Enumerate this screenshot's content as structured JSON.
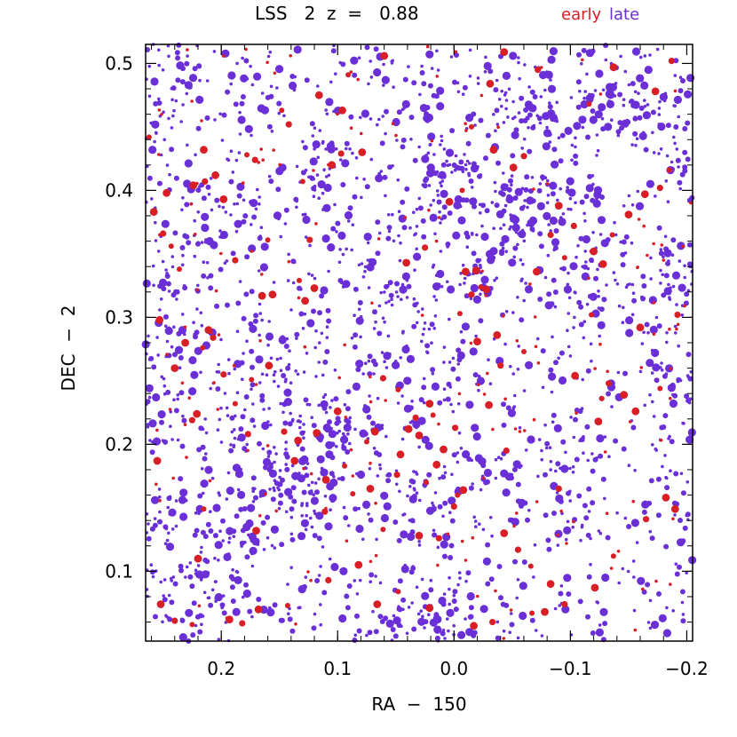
{
  "chart_data": {
    "type": "scatter",
    "title": "LSS   2  z  =   0.88",
    "xlabel": "RA  −  150",
    "ylabel": "DEC  −  2",
    "xlim": [
      0.265,
      -0.205
    ],
    "ylim": [
      0.045,
      0.515
    ],
    "x_ticks": [
      {
        "value": 0.2,
        "label": "0.2"
      },
      {
        "value": 0.1,
        "label": "0.1"
      },
      {
        "value": 0.0,
        "label": "0.0"
      },
      {
        "value": -0.1,
        "label": "−0.1"
      },
      {
        "value": -0.2,
        "label": "−0.2"
      }
    ],
    "y_ticks": [
      {
        "value": 0.1,
        "label": "0.1"
      },
      {
        "value": 0.2,
        "label": "0.2"
      },
      {
        "value": 0.3,
        "label": "0.3"
      },
      {
        "value": 0.4,
        "label": "0.4"
      },
      {
        "value": 0.5,
        "label": "0.5"
      }
    ],
    "x_minor_step": 0.02,
    "y_minor_step": 0.02,
    "legend_position": "top-right",
    "series": [
      {
        "name": "early",
        "color": "#d81f26",
        "points": [
          [
            0.262,
            0.442
          ],
          [
            0.258,
            0.383
          ],
          [
            0.247,
            0.398
          ],
          [
            0.25,
            0.366
          ],
          [
            0.236,
            0.338
          ],
          [
            0.224,
            0.404
          ],
          [
            0.214,
            0.407
          ],
          [
            0.205,
            0.412
          ],
          [
            0.178,
            0.428
          ],
          [
            0.171,
            0.424
          ],
          [
            0.165,
            0.317
          ],
          [
            0.156,
            0.318
          ],
          [
            0.133,
            0.329
          ],
          [
            0.128,
            0.313
          ],
          [
            0.12,
            0.323
          ],
          [
            0.124,
            0.361
          ],
          [
            0.13,
            0.407
          ],
          [
            0.105,
            0.42
          ],
          [
            0.097,
            0.429
          ],
          [
            0.079,
            0.43
          ],
          [
            0.148,
            0.463
          ],
          [
            0.142,
            0.452
          ],
          [
            0.116,
            0.475
          ],
          [
            0.096,
            0.463
          ],
          [
            0.091,
            0.491
          ],
          [
            0.06,
            0.506
          ],
          [
            0.211,
            0.29
          ],
          [
            0.207,
            0.284
          ],
          [
            0.216,
            0.276
          ],
          [
            0.221,
            0.224
          ],
          [
            0.225,
            0.219
          ],
          [
            0.24,
            0.26
          ],
          [
            0.174,
            0.251
          ],
          [
            0.177,
            0.208
          ],
          [
            0.134,
            0.203
          ],
          [
            0.118,
            0.209
          ],
          [
            0.075,
            0.202
          ],
          [
            0.068,
            0.21
          ],
          [
            0.039,
            0.212
          ],
          [
            0.033,
            0.221
          ],
          [
            0.018,
            0.223
          ],
          [
            0.021,
            0.232
          ],
          [
            -0.001,
            0.213
          ],
          [
            0.009,
            0.196
          ],
          [
            0.048,
            0.243
          ],
          [
            0.061,
            0.252
          ],
          [
            0.1,
            0.226
          ],
          [
            0.11,
            0.172
          ],
          [
            0.087,
            0.161
          ],
          [
            0.072,
            0.165
          ],
          [
            0.03,
            0.128
          ],
          [
            0.013,
            0.126
          ],
          [
            -0.003,
            0.16
          ],
          [
            -0.008,
            0.164
          ],
          [
            0.0,
            0.151
          ],
          [
            -0.019,
            0.337
          ],
          [
            -0.023,
            0.324
          ],
          [
            -0.015,
            0.318
          ],
          [
            -0.01,
            0.336
          ],
          [
            -0.028,
            0.322
          ],
          [
            -0.005,
            0.303
          ],
          [
            -0.02,
            0.281
          ],
          [
            -0.037,
            0.286
          ],
          [
            -0.04,
            0.262
          ],
          [
            -0.06,
            0.273
          ],
          [
            -0.071,
            0.336
          ],
          [
            -0.083,
            0.365
          ],
          [
            -0.09,
            0.388
          ],
          [
            -0.095,
            0.347
          ],
          [
            -0.103,
            0.372
          ],
          [
            -0.12,
            0.352
          ],
          [
            -0.128,
            0.342
          ],
          [
            -0.136,
            0.365
          ],
          [
            -0.15,
            0.381
          ],
          [
            -0.164,
            0.397
          ],
          [
            -0.177,
            0.402
          ],
          [
            -0.185,
            0.416
          ],
          [
            -0.173,
            0.478
          ],
          [
            -0.187,
            0.502
          ],
          [
            -0.137,
            0.497
          ],
          [
            -0.116,
            0.468
          ],
          [
            -0.072,
            0.495
          ],
          [
            -0.043,
            0.509
          ],
          [
            -0.031,
            0.484
          ],
          [
            -0.015,
            0.45
          ],
          [
            -0.034,
            0.432
          ],
          [
            -0.051,
            0.418
          ],
          [
            -0.06,
            0.427
          ],
          [
            -0.007,
            0.4
          ],
          [
            0.004,
            0.391
          ],
          [
            0.025,
            0.355
          ],
          [
            0.041,
            0.343
          ],
          [
            0.16,
            0.361
          ],
          [
            0.188,
            0.345
          ],
          [
            0.198,
            0.393
          ],
          [
            0.215,
            0.432
          ],
          [
            0.243,
            0.356
          ],
          [
            0.253,
            0.298
          ],
          [
            0.231,
            0.28
          ],
          [
            0.198,
            0.255
          ],
          [
            0.188,
            0.232
          ],
          [
            0.159,
            0.262
          ],
          [
            0.146,
            0.21
          ],
          [
            0.137,
            0.187
          ],
          [
            0.094,
            0.183
          ],
          [
            0.049,
            0.176
          ],
          [
            0.046,
            0.192
          ],
          [
            0.03,
            0.207
          ],
          [
            0.024,
            0.17
          ],
          [
            0.015,
            0.184
          ],
          [
            -0.043,
            0.13
          ],
          [
            -0.055,
            0.117
          ],
          [
            -0.066,
            0.104
          ],
          [
            -0.083,
            0.09
          ],
          [
            -0.09,
            0.165
          ],
          [
            -0.124,
            0.218
          ],
          [
            -0.127,
            0.236
          ],
          [
            -0.133,
            0.248
          ],
          [
            -0.146,
            0.239
          ],
          [
            -0.156,
            0.226
          ],
          [
            -0.177,
            0.244
          ],
          [
            -0.182,
            0.158
          ],
          [
            -0.19,
            0.149
          ],
          [
            -0.165,
            0.141
          ],
          [
            -0.137,
            0.112
          ],
          [
            -0.121,
            0.087
          ],
          [
            -0.095,
            0.074
          ],
          [
            -0.078,
            0.068
          ],
          [
            -0.067,
            0.067
          ],
          [
            -0.033,
            0.06
          ],
          [
            -0.017,
            0.057
          ],
          [
            0.021,
            0.071
          ],
          [
            0.048,
            0.084
          ],
          [
            0.066,
            0.074
          ],
          [
            0.082,
            0.105
          ],
          [
            0.108,
            0.093
          ],
          [
            0.143,
            0.073
          ],
          [
            0.168,
            0.07
          ],
          [
            0.182,
            0.059
          ],
          [
            0.193,
            0.062
          ],
          [
            0.225,
            0.058
          ],
          [
            0.24,
            0.061
          ],
          [
            0.252,
            0.074
          ],
          [
            0.22,
            0.11
          ],
          [
            0.215,
            0.149
          ],
          [
            0.255,
            0.187
          ],
          [
            0.17,
            0.132
          ],
          [
            0.111,
            0.147
          ],
          [
            0.061,
            0.133
          ],
          [
            -0.104,
            0.254
          ],
          [
            -0.192,
            0.302
          ],
          [
            -0.16,
            0.292
          ],
          [
            -0.118,
            0.302
          ],
          [
            -0.045,
            0.195
          ],
          [
            -0.03,
            0.231
          ]
        ]
      },
      {
        "name": "late",
        "color": "#6a2fd6"
      }
    ]
  }
}
